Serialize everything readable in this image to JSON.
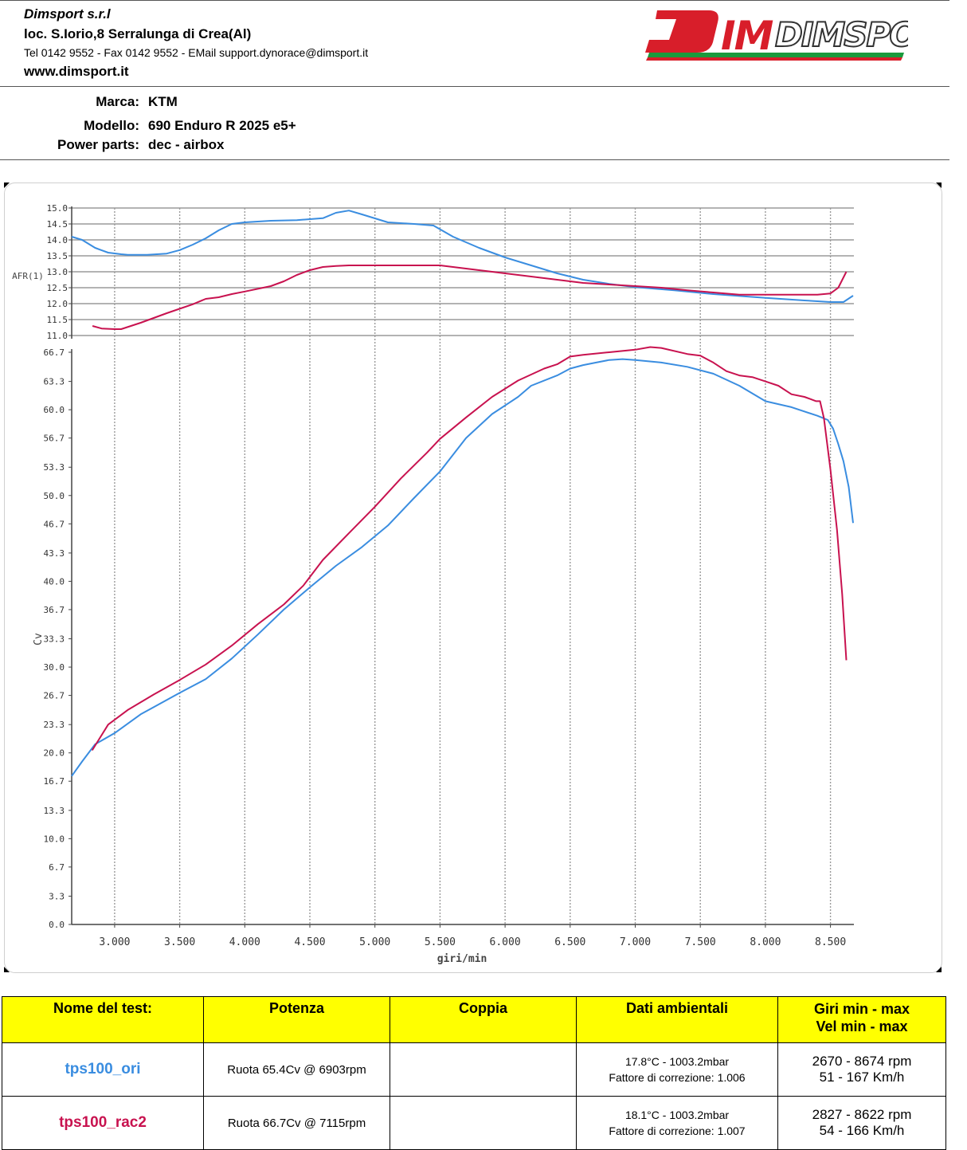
{
  "header": {
    "company": "Dimsport s.r.l",
    "address": "loc. S.Iorio,8 Serralunga di Crea(Al)",
    "contact": "Tel 0142 9552 - Fax 0142 9552 - EMail support.dynorace@dimsport.it",
    "website": "www.dimsport.it",
    "logo_text": "DIMSPORT"
  },
  "vehicle": {
    "brand_label": "Marca:",
    "brand": "KTM",
    "model_label": "Modello:",
    "model": "690 Enduro R 2025 e5+",
    "parts_label": "Power parts:",
    "parts": "dec - airbox"
  },
  "colors": {
    "ori": "#3a8de0",
    "rac2": "#c8124f",
    "table_header_bg": "#ffff00"
  },
  "chart_data": [
    {
      "type": "line",
      "ylabel": "AFR(1)",
      "ylim": [
        11.0,
        15.0
      ],
      "yticks": [
        "15.0",
        "14.5",
        "14.0",
        "13.5",
        "13.0",
        "12.5",
        "12.0",
        "11.5",
        "11.0"
      ],
      "xlim": [
        2670,
        8680
      ],
      "grid": true,
      "series": [
        {
          "name": "tps100_ori",
          "color": "#3a8de0",
          "points": [
            [
              2670,
              14.1
            ],
            [
              2750,
              14.0
            ],
            [
              2850,
              13.75
            ],
            [
              2950,
              13.6
            ],
            [
              3050,
              13.55
            ],
            [
              3100,
              13.53
            ],
            [
              3250,
              13.53
            ],
            [
              3400,
              13.57
            ],
            [
              3500,
              13.68
            ],
            [
              3600,
              13.85
            ],
            [
              3700,
              14.05
            ],
            [
              3800,
              14.3
            ],
            [
              3900,
              14.5
            ],
            [
              4000,
              14.55
            ],
            [
              4200,
              14.6
            ],
            [
              4400,
              14.62
            ],
            [
              4600,
              14.68
            ],
            [
              4700,
              14.85
            ],
            [
              4800,
              14.92
            ],
            [
              4900,
              14.8
            ],
            [
              5100,
              14.55
            ],
            [
              5300,
              14.5
            ],
            [
              5450,
              14.45
            ],
            [
              5600,
              14.1
            ],
            [
              5800,
              13.75
            ],
            [
              6000,
              13.45
            ],
            [
              6200,
              13.2
            ],
            [
              6400,
              12.95
            ],
            [
              6600,
              12.75
            ],
            [
              6800,
              12.62
            ],
            [
              7000,
              12.52
            ],
            [
              7300,
              12.42
            ],
            [
              7600,
              12.3
            ],
            [
              8000,
              12.18
            ],
            [
              8300,
              12.1
            ],
            [
              8500,
              12.05
            ],
            [
              8600,
              12.05
            ],
            [
              8674,
              12.25
            ]
          ]
        },
        {
          "name": "tps100_rac2",
          "color": "#c8124f",
          "points": [
            [
              2830,
              11.3
            ],
            [
              2900,
              11.22
            ],
            [
              3000,
              11.2
            ],
            [
              3050,
              11.2
            ],
            [
              3200,
              11.4
            ],
            [
              3400,
              11.7
            ],
            [
              3600,
              11.98
            ],
            [
              3700,
              12.15
            ],
            [
              3800,
              12.2
            ],
            [
              3900,
              12.3
            ],
            [
              4000,
              12.38
            ],
            [
              4200,
              12.55
            ],
            [
              4300,
              12.7
            ],
            [
              4400,
              12.9
            ],
            [
              4500,
              13.05
            ],
            [
              4600,
              13.15
            ],
            [
              4700,
              13.18
            ],
            [
              4800,
              13.2
            ],
            [
              5000,
              13.2
            ],
            [
              5200,
              13.2
            ],
            [
              5500,
              13.2
            ],
            [
              5600,
              13.15
            ],
            [
              5800,
              13.05
            ],
            [
              6000,
              12.95
            ],
            [
              6200,
              12.85
            ],
            [
              6400,
              12.75
            ],
            [
              6600,
              12.65
            ],
            [
              6800,
              12.6
            ],
            [
              7000,
              12.55
            ],
            [
              7200,
              12.5
            ],
            [
              7400,
              12.42
            ],
            [
              7600,
              12.35
            ],
            [
              7800,
              12.28
            ],
            [
              8000,
              12.28
            ],
            [
              8200,
              12.28
            ],
            [
              8400,
              12.28
            ],
            [
              8500,
              12.32
            ],
            [
              8560,
              12.5
            ],
            [
              8622,
              13.0
            ]
          ]
        }
      ]
    },
    {
      "type": "line",
      "xlabel": "giri/min",
      "ylabel": "Cv",
      "ylim": [
        0.0,
        66.7
      ],
      "yticks": [
        "66.7",
        "63.3",
        "60.0",
        "56.7",
        "53.3",
        "50.0",
        "46.7",
        "43.3",
        "40.0",
        "36.7",
        "33.3",
        "30.0",
        "26.7",
        "23.3",
        "20.0",
        "16.7",
        "13.3",
        "10.0",
        "6.7",
        "3.3",
        "0.0"
      ],
      "xlim": [
        2670,
        8680
      ],
      "xticks": [
        3000,
        3500,
        4000,
        4500,
        5000,
        5500,
        6000,
        6500,
        7000,
        7500,
        8000,
        8500
      ],
      "xtick_labels": [
        "3.000",
        "3.500",
        "4.000",
        "4.500",
        "5.000",
        "5.500",
        "6.000",
        "6.500",
        "7.000",
        "7.500",
        "8.000",
        "8.500"
      ],
      "grid": true,
      "series": [
        {
          "name": "tps100_ori",
          "color": "#3a8de0",
          "points": [
            [
              2670,
              17.3
            ],
            [
              2750,
              19.0
            ],
            [
              2850,
              21.0
            ],
            [
              3000,
              22.3
            ],
            [
              3200,
              24.5
            ],
            [
              3500,
              27.0
            ],
            [
              3700,
              28.6
            ],
            [
              3900,
              31.0
            ],
            [
              4100,
              33.8
            ],
            [
              4300,
              36.7
            ],
            [
              4500,
              39.3
            ],
            [
              4700,
              41.8
            ],
            [
              4900,
              44.0
            ],
            [
              5100,
              46.5
            ],
            [
              5300,
              49.7
            ],
            [
              5500,
              52.8
            ],
            [
              5700,
              56.7
            ],
            [
              5900,
              59.5
            ],
            [
              6100,
              61.5
            ],
            [
              6200,
              62.8
            ],
            [
              6400,
              64.0
            ],
            [
              6500,
              64.8
            ],
            [
              6600,
              65.2
            ],
            [
              6700,
              65.5
            ],
            [
              6800,
              65.8
            ],
            [
              6903,
              65.9
            ],
            [
              7000,
              65.8
            ],
            [
              7200,
              65.5
            ],
            [
              7400,
              65.0
            ],
            [
              7600,
              64.2
            ],
            [
              7800,
              62.8
            ],
            [
              8000,
              61.0
            ],
            [
              8200,
              60.3
            ],
            [
              8400,
              59.3
            ],
            [
              8480,
              58.8
            ],
            [
              8520,
              57.8
            ],
            [
              8560,
              56.0
            ],
            [
              8600,
              54.0
            ],
            [
              8640,
              51.0
            ],
            [
              8674,
              46.8
            ]
          ]
        },
        {
          "name": "tps100_rac2",
          "color": "#c8124f",
          "points": [
            [
              2827,
              20.3
            ],
            [
              2950,
              23.3
            ],
            [
              3100,
              25.0
            ],
            [
              3300,
              26.8
            ],
            [
              3500,
              28.5
            ],
            [
              3700,
              30.3
            ],
            [
              3900,
              32.5
            ],
            [
              4100,
              35.0
            ],
            [
              4300,
              37.3
            ],
            [
              4450,
              39.5
            ],
            [
              4600,
              42.5
            ],
            [
              4800,
              45.6
            ],
            [
              5000,
              48.7
            ],
            [
              5200,
              52.0
            ],
            [
              5400,
              55.0
            ],
            [
              5500,
              56.6
            ],
            [
              5700,
              59.1
            ],
            [
              5900,
              61.5
            ],
            [
              6100,
              63.4
            ],
            [
              6300,
              64.8
            ],
            [
              6400,
              65.3
            ],
            [
              6500,
              66.2
            ],
            [
              6600,
              66.4
            ],
            [
              6800,
              66.7
            ],
            [
              7000,
              67.0
            ],
            [
              7115,
              67.3
            ],
            [
              7200,
              67.2
            ],
            [
              7400,
              66.5
            ],
            [
              7500,
              66.3
            ],
            [
              7600,
              65.5
            ],
            [
              7700,
              64.5
            ],
            [
              7800,
              64.0
            ],
            [
              7900,
              63.8
            ],
            [
              8000,
              63.3
            ],
            [
              8100,
              62.8
            ],
            [
              8200,
              61.8
            ],
            [
              8300,
              61.5
            ],
            [
              8390,
              61.0
            ],
            [
              8420,
              61.0
            ],
            [
              8450,
              59.0
            ],
            [
              8500,
              53.0
            ],
            [
              8550,
              46.0
            ],
            [
              8590,
              38.5
            ],
            [
              8622,
              30.8
            ]
          ]
        }
      ]
    }
  ],
  "table": {
    "headers": {
      "name": "Nome del test:",
      "power": "Potenza",
      "torque": "Coppia",
      "ambient": "Dati ambientali",
      "range_line1": "Giri min - max",
      "range_line2": "Vel  min - max"
    },
    "rows": [
      {
        "name": "tps100_ori",
        "power": "Ruota 65.4Cv @ 6903rpm",
        "torque": "",
        "ambient1": "17.8°C - 1003.2mbar",
        "ambient2": "Fattore di correzione: 1.006",
        "rpm": "2670 - 8674 rpm",
        "speed": "51 - 167 Km/h"
      },
      {
        "name": "tps100_rac2",
        "power": "Ruota 66.7Cv @ 7115rpm",
        "torque": "",
        "ambient1": "18.1°C - 1003.2mbar",
        "ambient2": "Fattore di correzione: 1.007",
        "rpm": "2827 - 8622 rpm",
        "speed": "54 - 166 Km/h"
      }
    ]
  }
}
